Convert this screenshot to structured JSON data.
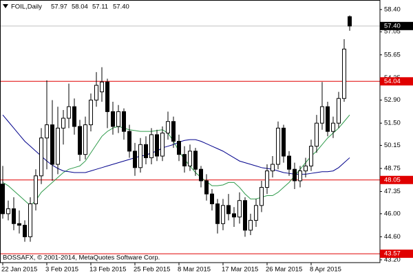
{
  "chart_data": {
    "type": "candlestick",
    "title": "FOIL,Daily",
    "ohlc_labels": [
      "57.97",
      "58.04",
      "57.11",
      "57.40"
    ],
    "copyright": "BOSSAFX, © 2001-2014, MetaQuotes Software Corp.",
    "categories": [
      "22 Jan 2015",
      null,
      null,
      null,
      null,
      null,
      null,
      null,
      "3 Feb 2015",
      null,
      null,
      null,
      null,
      null,
      null,
      null,
      "13 Feb 2015",
      null,
      null,
      null,
      null,
      null,
      null,
      null,
      "25 Feb 2015",
      null,
      null,
      null,
      null,
      null,
      null,
      null,
      "8 Mar 2015",
      null,
      null,
      null,
      null,
      null,
      null,
      null,
      "17 Mar 2015",
      null,
      null,
      null,
      null,
      null,
      null,
      null,
      "26 Mar 2015",
      null,
      null,
      null,
      null,
      null,
      null,
      null,
      "8 Apr 2015",
      null,
      null,
      null,
      null,
      null,
      null,
      null
    ],
    "open": [
      47.8,
      46.0,
      46.3,
      45.4,
      45.3,
      44.6,
      46.6,
      48.3,
      50.6,
      51.4,
      49.0,
      51.2,
      51.8,
      52.5,
      51.3,
      49.6,
      51.4,
      52.9,
      53.4,
      54.0,
      52.2,
      51.3,
      52.2,
      51.0,
      49.8,
      48.8,
      50.2,
      49.4,
      50.8,
      49.5,
      50.9,
      51.6,
      50.4,
      49.6,
      48.9,
      49.8,
      48.7,
      48.0,
      47.2,
      46.6,
      45.4,
      46.5,
      46.0,
      45.8,
      46.8,
      45.0,
      45.6,
      46.5,
      47.6,
      48.6,
      49.0,
      51.2,
      49.5,
      48.7,
      48.0,
      48.6,
      48.9,
      50.1,
      51.5,
      52.5,
      51.0,
      51.5,
      53.0,
      57.97
    ],
    "high": [
      48.9,
      46.8,
      47.0,
      46.2,
      45.6,
      47.0,
      48.7,
      51.2,
      54.1,
      52.9,
      52.5,
      52.3,
      53.9,
      53.0,
      51.7,
      51.9,
      53.3,
      54.6,
      54.9,
      54.2,
      52.8,
      52.6,
      52.4,
      51.4,
      50.3,
      50.6,
      50.7,
      51.2,
      51.1,
      51.3,
      52.2,
      51.9,
      50.8,
      50.1,
      50.2,
      50.0,
      48.9,
      48.4,
      47.5,
      46.9,
      46.9,
      47.2,
      46.4,
      47.3,
      47.0,
      46.0,
      46.9,
      48.0,
      49.0,
      49.5,
      51.6,
      51.4,
      49.8,
      49.1,
      48.9,
      49.4,
      50.5,
      52.0,
      54.0,
      52.8,
      51.9,
      53.4,
      56.6,
      58.04
    ],
    "low": [
      45.7,
      45.6,
      45.0,
      44.8,
      44.3,
      44.3,
      46.2,
      47.8,
      48.7,
      48.0,
      48.4,
      50.2,
      51.2,
      50.8,
      49.2,
      49.3,
      51.0,
      52.5,
      52.8,
      51.2,
      50.8,
      50.9,
      50.5,
      49.4,
      48.3,
      48.5,
      49.0,
      49.0,
      49.2,
      49.2,
      50.5,
      50.0,
      49.2,
      48.5,
      48.6,
      48.3,
      47.6,
      46.8,
      46.2,
      44.8,
      45.0,
      45.6,
      45.2,
      45.4,
      44.6,
      44.7,
      45.2,
      46.1,
      47.2,
      48.2,
      48.7,
      49.1,
      48.3,
      47.5,
      47.6,
      48.2,
      48.6,
      49.7,
      51.1,
      50.7,
      50.6,
      51.2,
      52.8,
      57.11
    ],
    "close": [
      46.0,
      46.3,
      45.4,
      45.3,
      44.6,
      46.6,
      48.3,
      50.6,
      51.4,
      49.0,
      51.2,
      51.8,
      52.5,
      51.3,
      49.6,
      51.4,
      52.9,
      53.8,
      54.0,
      52.2,
      51.3,
      52.2,
      51.0,
      49.8,
      48.8,
      50.2,
      49.4,
      50.8,
      49.5,
      50.9,
      51.6,
      50.4,
      49.6,
      48.9,
      49.8,
      48.7,
      48.0,
      47.2,
      46.6,
      45.4,
      46.5,
      46.0,
      45.8,
      46.8,
      45.0,
      45.6,
      46.5,
      47.6,
      48.6,
      49.0,
      51.2,
      49.5,
      48.7,
      48.0,
      48.6,
      48.9,
      50.1,
      51.5,
      52.5,
      51.0,
      51.5,
      53.0,
      56.0,
      57.4
    ],
    "up_color": "#ffffff",
    "down_color": "#000000",
    "moving_averages": [
      {
        "color": "#2e9a4a",
        "values": [
          47.9,
          47.7,
          47.4,
          47.1,
          46.8,
          46.5,
          46.8,
          47.3,
          47.6,
          47.9,
          48.2,
          48.5,
          48.7,
          48.8,
          48.9,
          49.2,
          49.7,
          50.2,
          50.7,
          51.0,
          51.2,
          51.3,
          51.2,
          51.1,
          51.05,
          51.0,
          51.0,
          51.0,
          51.05,
          51.1,
          50.9,
          50.4,
          49.8,
          49.3,
          48.9,
          48.5,
          48.2,
          47.95,
          47.7,
          47.7,
          47.75,
          47.9,
          47.9,
          47.6,
          47.2,
          46.9,
          46.9,
          47.0,
          47.1,
          47.1,
          47.3,
          47.6,
          47.9,
          48.3,
          48.7,
          49.1,
          49.5,
          49.8,
          50.2,
          50.6,
          50.9,
          51.2,
          51.6,
          52.0
        ]
      },
      {
        "color": "#00008b",
        "values": [
          52.0,
          51.6,
          51.2,
          50.8,
          50.4,
          50.1,
          49.8,
          49.5,
          49.2,
          48.95,
          48.75,
          48.6,
          48.55,
          48.5,
          48.5,
          48.5,
          48.6,
          48.7,
          48.8,
          48.9,
          49.0,
          49.1,
          49.2,
          49.3,
          49.4,
          49.5,
          49.55,
          49.7,
          49.8,
          50.0,
          50.1,
          50.2,
          50.35,
          50.45,
          50.5,
          50.5,
          50.4,
          50.25,
          50.1,
          49.95,
          49.8,
          49.6,
          49.4,
          49.2,
          49.1,
          49.0,
          48.9,
          48.8,
          48.75,
          48.7,
          48.6,
          48.5,
          48.45,
          48.4,
          48.4,
          48.4,
          48.45,
          48.5,
          48.55,
          48.55,
          48.6,
          48.8,
          49.1,
          49.4
        ]
      }
    ],
    "hlines": [
      {
        "value": 54.04,
        "label": "54.04"
      },
      {
        "value": 48.05,
        "label": "48.05"
      },
      {
        "value": 43.57,
        "label": "43.57"
      }
    ],
    "hline_color": "#e00000",
    "last_price": {
      "value": 57.4,
      "label": "57.40"
    },
    "ylim": [
      43.03,
      58.98
    ],
    "yticks": [
      {
        "value": 58.4,
        "label": "58.40"
      },
      57.05,
      55.65,
      {
        "value": 54.25,
        "label": "54.25"
      },
      {
        "value": 52.9,
        "label": "52.90"
      },
      {
        "value": 51.5,
        "label": "51.50"
      },
      50.15,
      48.75,
      47.35,
      {
        "value": 46.0,
        "label": "46.00"
      },
      {
        "value": 44.6,
        "label": "44.60"
      },
      {
        "value": 43.2,
        "label": "43.20"
      }
    ],
    "grid": false
  }
}
